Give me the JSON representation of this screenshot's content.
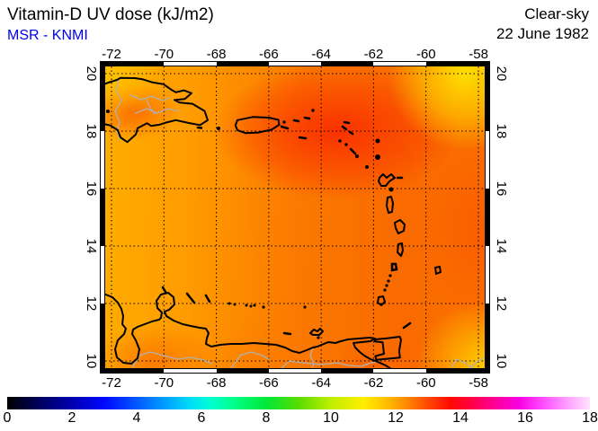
{
  "header": {
    "title": "Vitamin-D UV dose (kJ/m2)",
    "source": "MSR - KNMI",
    "condition": "Clear-sky",
    "date": "22 June 1982"
  },
  "colors": {
    "source_blue": "#0000ee",
    "title_black": "#000000",
    "map_base_orange": "#fb7a00",
    "map_hot_red": "#f92a00",
    "map_corner_yellow": "#ffe400"
  },
  "map_axes": {
    "lon_ticks": [
      "-72",
      "-70",
      "-68",
      "-66",
      "-64",
      "-62",
      "-60",
      "-58"
    ],
    "lat_ticks": [
      "20",
      "18",
      "16",
      "14",
      "12",
      "10"
    ]
  },
  "colorbar": {
    "ticks": [
      "0",
      "2",
      "4",
      "6",
      "8",
      "10",
      "12",
      "14",
      "16",
      "18"
    ],
    "min": 0,
    "max": 18,
    "stops": [
      {
        "v": 0,
        "c": "#000000"
      },
      {
        "v": 1,
        "c": "#000060"
      },
      {
        "v": 2,
        "c": "#0000b0"
      },
      {
        "v": 3,
        "c": "#0008ff"
      },
      {
        "v": 4,
        "c": "#0058ff"
      },
      {
        "v": 5,
        "c": "#00a8ff"
      },
      {
        "v": 5.7,
        "c": "#00e0f8"
      },
      {
        "v": 6.3,
        "c": "#00ffd0"
      },
      {
        "v": 7,
        "c": "#00ff88"
      },
      {
        "v": 8,
        "c": "#00e838"
      },
      {
        "v": 9,
        "c": "#58dc00"
      },
      {
        "v": 10,
        "c": "#c0ee00"
      },
      {
        "v": 11,
        "c": "#ffee00"
      },
      {
        "v": 11.7,
        "c": "#ffc000"
      },
      {
        "v": 12.3,
        "c": "#ff8c00"
      },
      {
        "v": 13,
        "c": "#ff4800"
      },
      {
        "v": 13.7,
        "c": "#ff0800"
      },
      {
        "v": 14.3,
        "c": "#ff0040"
      },
      {
        "v": 15,
        "c": "#ff0090"
      },
      {
        "v": 15.8,
        "c": "#f800e0"
      },
      {
        "v": 16.5,
        "c": "#ff48ff"
      },
      {
        "v": 17.2,
        "c": "#ff94ff"
      },
      {
        "v": 18,
        "c": "#ffe4ff"
      }
    ]
  },
  "chart_data": {
    "type": "heatmap",
    "title": "Vitamin-D UV dose (kJ/m2)",
    "subtitle": "MSR - KNMI",
    "annotation_right": [
      "Clear-sky",
      "22 June 1982"
    ],
    "x_axis": {
      "label": "",
      "ticks": [
        -72,
        -70,
        -68,
        -66,
        -64,
        -62,
        -60,
        -58
      ],
      "range": [
        -72.25,
        -57.75
      ]
    },
    "y_axis": {
      "label": "",
      "ticks": [
        20,
        18,
        16,
        14,
        12,
        10
      ],
      "range": [
        9.75,
        20.25
      ]
    },
    "colorbar": {
      "min": 0,
      "max": 18,
      "tick_step": 2,
      "units": "kJ/m2"
    },
    "grid_on": true,
    "field_estimate_note": "approximate dose values read from colors at lat/lon grid points",
    "field_lats": [
      20,
      18,
      16,
      14,
      12,
      10
    ],
    "field_lons": [
      -72,
      -70,
      -68,
      -66,
      -64,
      -62,
      -60,
      -58
    ],
    "field_values": [
      [
        11.6,
        12.0,
        12.3,
        12.6,
        12.8,
        12.4,
        11.6,
        10.9
      ],
      [
        11.8,
        12.2,
        12.6,
        13.0,
        13.4,
        13.2,
        12.6,
        12.2
      ],
      [
        11.6,
        12.0,
        12.4,
        12.8,
        13.0,
        12.9,
        12.6,
        12.4
      ],
      [
        11.5,
        11.9,
        12.2,
        12.5,
        12.7,
        12.6,
        12.4,
        12.2
      ],
      [
        11.6,
        12.0,
        12.2,
        12.3,
        12.4,
        12.3,
        12.1,
        11.8
      ],
      [
        12.2,
        12.6,
        12.3,
        12.4,
        12.5,
        12.6,
        11.9,
        11.5
      ]
    ]
  }
}
